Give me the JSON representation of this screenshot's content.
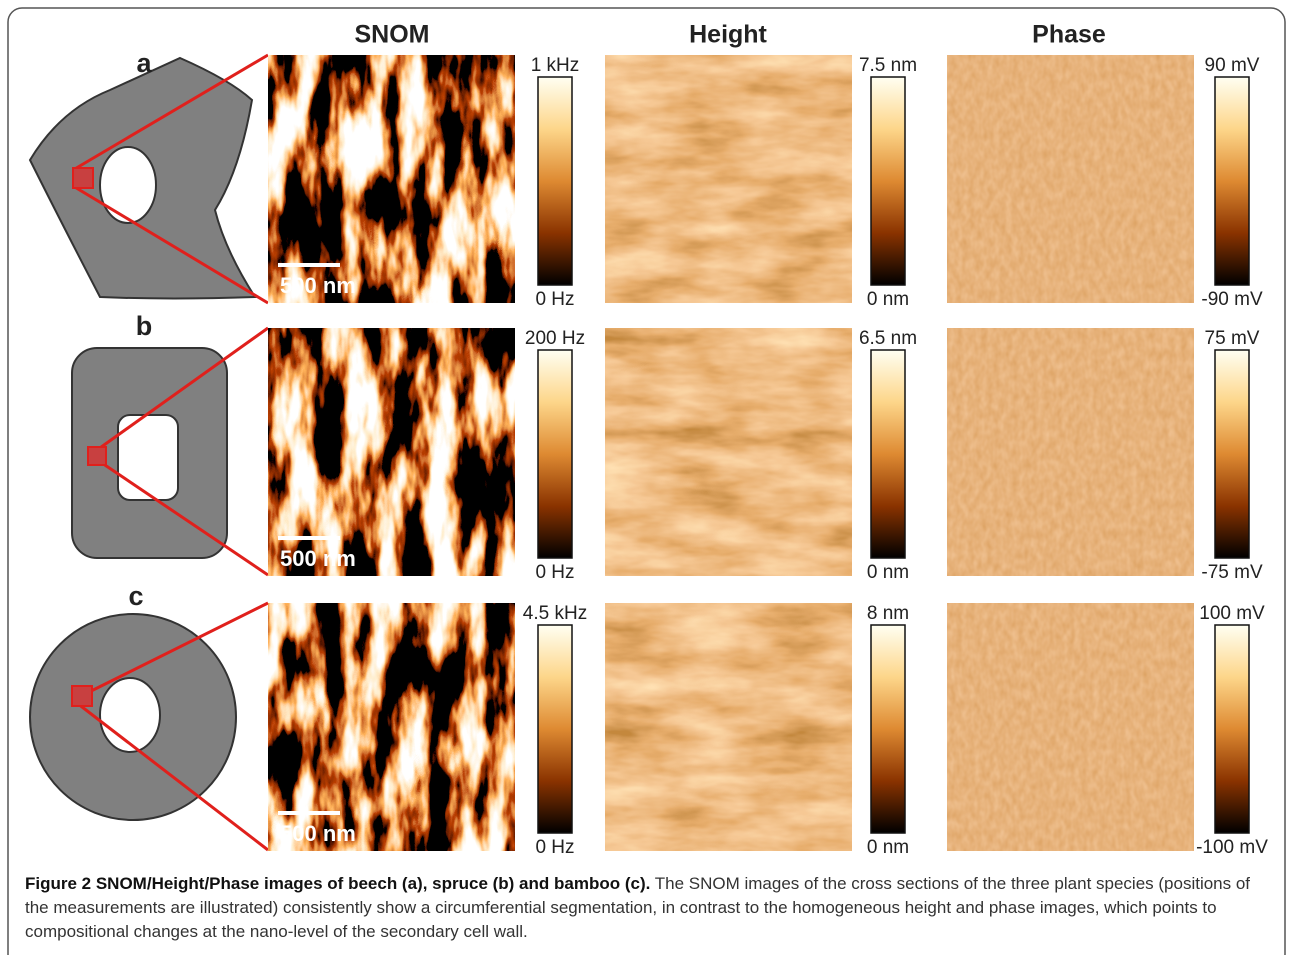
{
  "figure": {
    "columns": [
      "SNOM",
      "Height",
      "Phase"
    ],
    "rows": [
      {
        "label": "a",
        "scale_bar": "500 nm",
        "colorbars": [
          {
            "max": "1 kHz",
            "min": "0 Hz"
          },
          {
            "max": "7.5 nm",
            "min": "0 nm"
          },
          {
            "max": "90 mV",
            "min": "-90 mV"
          }
        ]
      },
      {
        "label": "b",
        "scale_bar": "500 nm",
        "colorbars": [
          {
            "max": "200 Hz",
            "min": "0 Hz"
          },
          {
            "max": "6.5 nm",
            "min": "0 nm"
          },
          {
            "max": "75 mV",
            "min": "-75 mV"
          }
        ]
      },
      {
        "label": "c",
        "scale_bar": "500 nm",
        "colorbars": [
          {
            "max": "4.5 kHz",
            "min": "0 Hz"
          },
          {
            "max": "8 nm",
            "min": "0 nm"
          },
          {
            "max": "100 mV",
            "min": "-100 mV"
          }
        ]
      }
    ],
    "caption": {
      "title": "Figure 2 SNOM/Height/Phase images of beech (a), spruce (b) and bamboo (c).",
      "text": "The SNOM images of the cross sections of the three plant species (positions of the measurements are illustrated) consistently show a circumferential segmentation, in contrast to the homogeneous height and phase images, which points to compositional changes at the nano-level of the secondary cell wall."
    }
  }
}
